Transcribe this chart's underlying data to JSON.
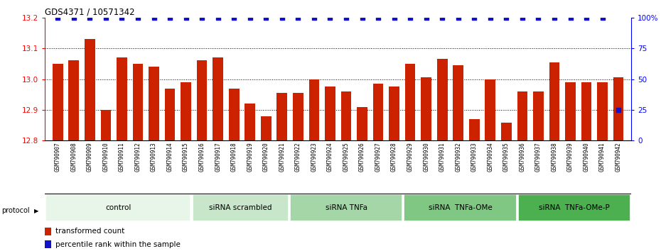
{
  "title": "GDS4371 / 10571342",
  "samples": [
    "GSM790907",
    "GSM790908",
    "GSM790909",
    "GSM790910",
    "GSM790911",
    "GSM790912",
    "GSM790913",
    "GSM790914",
    "GSM790915",
    "GSM790916",
    "GSM790917",
    "GSM790918",
    "GSM790919",
    "GSM790920",
    "GSM790921",
    "GSM790922",
    "GSM790923",
    "GSM790924",
    "GSM790925",
    "GSM790926",
    "GSM790927",
    "GSM790928",
    "GSM790929",
    "GSM790930",
    "GSM790931",
    "GSM790932",
    "GSM790933",
    "GSM790934",
    "GSM790935",
    "GSM790936",
    "GSM790937",
    "GSM790938",
    "GSM790939",
    "GSM790940",
    "GSM790941",
    "GSM790942"
  ],
  "bar_values": [
    13.05,
    13.06,
    13.13,
    12.9,
    13.07,
    13.05,
    13.04,
    12.97,
    12.99,
    13.06,
    13.07,
    12.97,
    12.92,
    12.88,
    12.955,
    12.955,
    13.0,
    12.975,
    12.96,
    12.91,
    12.985,
    12.975,
    13.05,
    13.005,
    13.065,
    13.045,
    12.87,
    12.998,
    12.858,
    12.96,
    12.96,
    13.055,
    12.99,
    12.99,
    12.99,
    13.005
  ],
  "percentile_values": [
    100,
    100,
    100,
    100,
    100,
    100,
    100,
    100,
    100,
    100,
    100,
    100,
    100,
    100,
    100,
    100,
    100,
    100,
    100,
    100,
    100,
    100,
    100,
    100,
    100,
    100,
    100,
    100,
    100,
    100,
    100,
    100,
    100,
    100,
    100,
    25
  ],
  "groups": [
    {
      "label": "control",
      "start": 0,
      "end": 9,
      "color": "#e8f5e9"
    },
    {
      "label": "siRNA scrambled",
      "start": 9,
      "end": 15,
      "color": "#c8e6c9"
    },
    {
      "label": "siRNA TNFa",
      "start": 15,
      "end": 22,
      "color": "#a5d6a7"
    },
    {
      "label": "siRNA  TNFa-OMe",
      "start": 22,
      "end": 29,
      "color": "#81c784"
    },
    {
      "label": "siRNA  TNFa-OMe-P",
      "start": 29,
      "end": 36,
      "color": "#4caf50"
    }
  ],
  "ylim_left": [
    12.8,
    13.2
  ],
  "ylim_right": [
    0,
    100
  ],
  "yticks_left": [
    12.8,
    12.9,
    13.0,
    13.1,
    13.2
  ],
  "yticks_right": [
    0,
    25,
    50,
    75,
    100
  ],
  "bar_color": "#cc2200",
  "percentile_color": "#1111cc",
  "background_color": "#ffffff",
  "tick_bg_color": "#d8d8d8",
  "legend_items": [
    {
      "label": "transformed count",
      "color": "#cc2200"
    },
    {
      "label": "percentile rank within the sample",
      "color": "#1111cc"
    }
  ]
}
